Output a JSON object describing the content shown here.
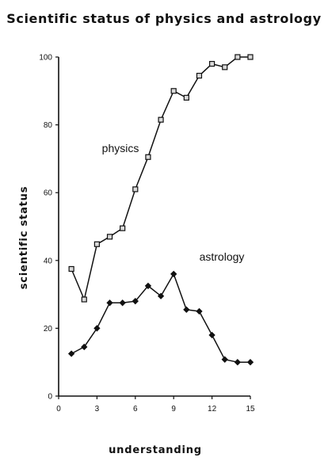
{
  "chart_data": {
    "type": "line",
    "title": "Scientific status of physics and astrology",
    "xlabel": "understanding",
    "ylabel": "scientific status",
    "xlim": [
      0,
      15
    ],
    "ylim": [
      0,
      100
    ],
    "x_ticks": [
      0,
      3,
      6,
      9,
      12,
      15
    ],
    "y_ticks": [
      0,
      20,
      40,
      60,
      80,
      100
    ],
    "grid": false,
    "legend": "none",
    "series": [
      {
        "name": "physics",
        "marker": "square",
        "x": [
          1,
          2,
          3,
          4,
          5,
          6,
          7,
          8,
          9,
          10,
          11,
          12,
          13,
          14,
          15
        ],
        "values": [
          37.5,
          28.5,
          44.8,
          47,
          49.5,
          61,
          70.5,
          81.5,
          90,
          88,
          94.5,
          98,
          97,
          100,
          100
        ]
      },
      {
        "name": "astrology",
        "marker": "diamond",
        "x": [
          1,
          2,
          3,
          4,
          5,
          6,
          7,
          8,
          9,
          10,
          11,
          12,
          13,
          14,
          15
        ],
        "values": [
          12.5,
          14.5,
          20,
          27.5,
          27.5,
          28,
          32.5,
          29.5,
          36,
          25.5,
          25,
          18,
          10.8,
          10,
          10
        ]
      }
    ],
    "colors": {
      "ink": "#111111",
      "background": "#ffffff",
      "marker_fill": "#d9d9d9"
    }
  }
}
